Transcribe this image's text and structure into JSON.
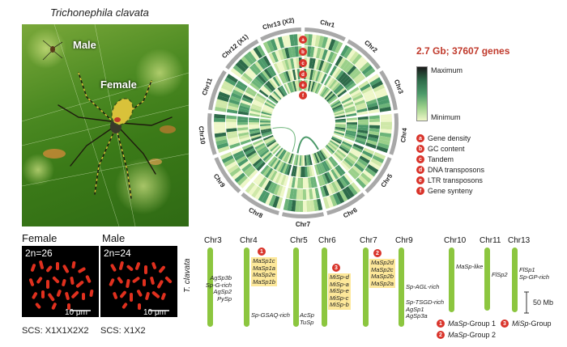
{
  "species_title": "Trichonephila clavata",
  "photo": {
    "male_label": "Male",
    "female_label": "Female"
  },
  "karyotype": {
    "female": {
      "title": "Female",
      "chromosome_count": "2n=26",
      "scale": "10 μm",
      "scs": "SCS: X1X1X2X2"
    },
    "male": {
      "title": "Male",
      "chromosome_count": "2n=24",
      "scale": "10 μm",
      "scs": "SCS: X1X2"
    }
  },
  "circos": {
    "genome_summary": "2.7 Gb; 37607 genes",
    "chromosomes": [
      "Chr1",
      "Chr2",
      "Chr3",
      "Chr4",
      "Chr5",
      "Chr6",
      "Chr7",
      "Chr8",
      "Chr9",
      "Chr10",
      "Chr11",
      "Chr12 (X1)",
      "Chr13 (X2)"
    ],
    "scale_max_label": "Maximum",
    "scale_min_label": "Minimum",
    "tracks": [
      {
        "id": "a",
        "label": "Gene density"
      },
      {
        "id": "b",
        "label": "GC content"
      },
      {
        "id": "c",
        "label": "Tandem"
      },
      {
        "id": "d",
        "label": "DNA transposons"
      },
      {
        "id": "e",
        "label": "LTR transposons"
      },
      {
        "id": "f",
        "label": "Gene synteny"
      }
    ]
  },
  "chromosome_map": {
    "species_label": "T. clavata",
    "scale_bar": "50 Mb",
    "chromosomes": [
      {
        "name": "Chr3",
        "genes": [
          "AgSp3b",
          "Sp-G-rich",
          "AgSp2",
          "PySp"
        ]
      },
      {
        "name": "Chr4",
        "group_badge": "1",
        "genes": [
          "MaSp1c",
          "MaSp1a",
          "MaSp2e",
          "MaSp1b",
          "Sp-GSAQ-rich"
        ]
      },
      {
        "name": "Chr5",
        "genes": [
          "AcSp",
          "TuSp"
        ]
      },
      {
        "name": "Chr6",
        "group_badge": "3",
        "genes": [
          "MiSp-d",
          "MiSp-a",
          "MiSp-e",
          "MiSp-c",
          "MiSp-b"
        ]
      },
      {
        "name": "Chr7",
        "group_badge": "2",
        "genes": [
          "MaSp2d",
          "MaSp2c",
          "MaSp2b",
          "MaSp2a"
        ]
      },
      {
        "name": "Chr9",
        "genes": [
          "Sp-AGL-rich",
          "Sp-TSGD-rich",
          "AgSp1",
          "AgSp3a"
        ]
      },
      {
        "name": "Chr10",
        "genes": [
          "MaSp-like"
        ]
      },
      {
        "name": "Chr11",
        "genes": [
          "FlSp2"
        ]
      },
      {
        "name": "Chr13",
        "genes": [
          "FlSp1",
          "Sp-GP-rich"
        ]
      }
    ],
    "group_legend": [
      {
        "badge": "1",
        "prefix": "MaSp",
        "suffix": "-Group 1"
      },
      {
        "badge": "2",
        "prefix": "MaSp",
        "suffix": "-Group 2"
      },
      {
        "badge": "3",
        "prefix": "MiSp",
        "suffix": "-Group"
      }
    ]
  },
  "colors": {
    "accent_red": "#d9342b",
    "chrom_green": "#8cc63f",
    "highlight": "#fde89a"
  }
}
